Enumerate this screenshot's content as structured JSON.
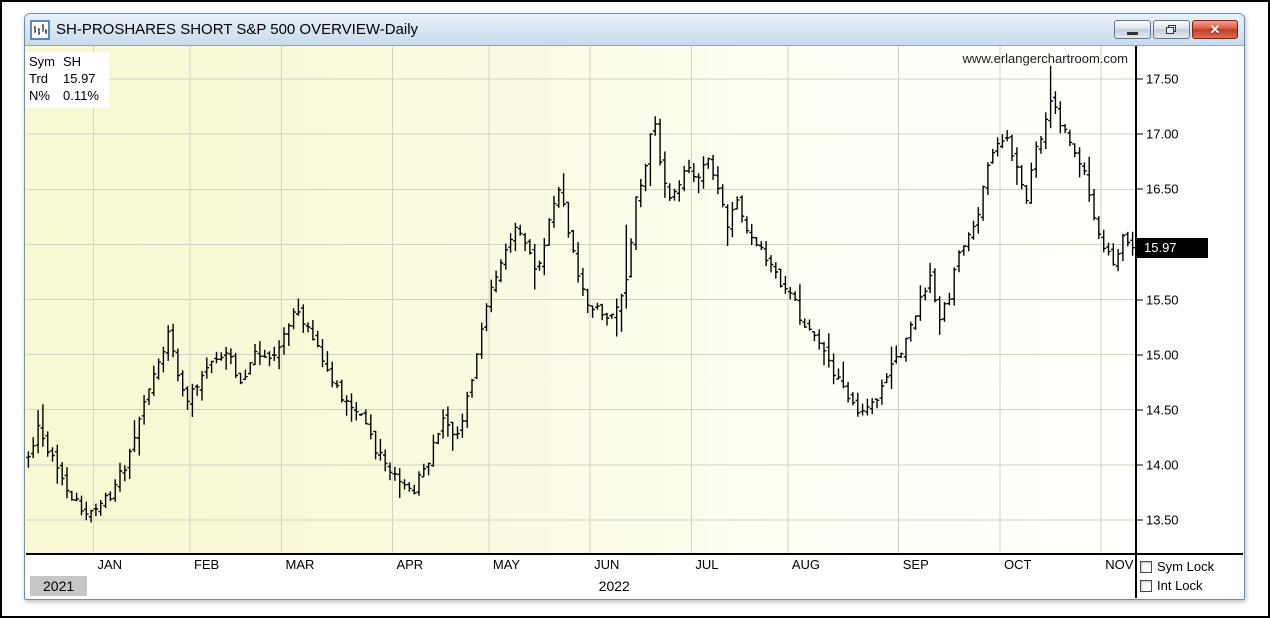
{
  "window": {
    "title": "SH-PROSHARES SHORT S&P 500 OVERVIEW-Daily",
    "controls": {
      "minimize": "minimize",
      "restore": "restore",
      "close": "close"
    }
  },
  "overlay": {
    "rows": [
      {
        "label": "Sym",
        "value": "SH"
      },
      {
        "label": "Trd",
        "value": "15.97"
      },
      {
        "label": "N%",
        "value": "0.11%"
      }
    ]
  },
  "watermark": "www.erlangerchartroom.com",
  "price_tag": "15.97",
  "footer": {
    "year_left": "2021",
    "year_center": "2022",
    "sym_lock": "Sym Lock",
    "int_lock": "Int Lock",
    "sym_lock_checked": false,
    "int_lock_checked": false
  },
  "colors": {
    "grid": "#d2d2c2",
    "bar": "#000000",
    "plot_bg_left": "#f8f8d2",
    "plot_bg_right": "#fffffd",
    "tag_bg": "#000000",
    "tag_fg": "#ffffff",
    "year_box_bg": "#c6c6c6",
    "titlebar_from": "#e9f1f9",
    "titlebar_to": "#c8dbed"
  },
  "chart_data": {
    "type": "bar",
    "subtype": "ohlc-daily",
    "symbol": "SH",
    "timeframe": "Daily",
    "last_price": 15.97,
    "net_change_pct": "0.11%",
    "ylim": [
      13.2,
      17.8
    ],
    "yticks": [
      13.5,
      14.0,
      14.5,
      15.0,
      15.5,
      16.0,
      16.5,
      17.0,
      17.5
    ],
    "grid": true,
    "axis_side": "right",
    "total_days": 230,
    "months": [
      {
        "label": "JAN",
        "start": 14
      },
      {
        "label": "FEB",
        "start": 34
      },
      {
        "label": "MAR",
        "start": 53
      },
      {
        "label": "APR",
        "start": 76
      },
      {
        "label": "MAY",
        "start": 96
      },
      {
        "label": "JUN",
        "start": 117
      },
      {
        "label": "JUL",
        "start": 138
      },
      {
        "label": "AUG",
        "start": 158
      },
      {
        "label": "SEP",
        "start": 181
      },
      {
        "label": "OCT",
        "start": 202
      },
      {
        "label": "NOV",
        "start": 223
      }
    ],
    "close_anchors": [
      [
        0,
        14.1
      ],
      [
        2,
        14.32
      ],
      [
        4,
        14.15
      ],
      [
        6,
        13.95
      ],
      [
        9,
        13.7
      ],
      [
        12,
        13.58
      ],
      [
        15,
        13.62
      ],
      [
        18,
        13.8
      ],
      [
        21,
        14.1
      ],
      [
        24,
        14.55
      ],
      [
        26,
        14.8
      ],
      [
        28,
        15.05
      ],
      [
        29,
        15.2
      ],
      [
        31,
        14.85
      ],
      [
        33,
        14.55
      ],
      [
        35,
        14.75
      ],
      [
        38,
        14.9
      ],
      [
        41,
        15.05
      ],
      [
        44,
        14.7
      ],
      [
        47,
        15.05
      ],
      [
        50,
        14.95
      ],
      [
        53,
        15.15
      ],
      [
        55,
        15.4
      ],
      [
        57,
        15.3
      ],
      [
        60,
        15.05
      ],
      [
        63,
        14.75
      ],
      [
        66,
        14.55
      ],
      [
        69,
        14.45
      ],
      [
        72,
        14.15
      ],
      [
        75,
        13.95
      ],
      [
        78,
        13.82
      ],
      [
        80,
        13.78
      ],
      [
        83,
        14.05
      ],
      [
        86,
        14.4
      ],
      [
        89,
        14.25
      ],
      [
        91,
        14.6
      ],
      [
        93,
        15.0
      ],
      [
        95,
        15.45
      ],
      [
        97,
        15.75
      ],
      [
        99,
        15.95
      ],
      [
        101,
        16.15
      ],
      [
        103,
        16.0
      ],
      [
        105,
        15.75
      ],
      [
        107,
        16.0
      ],
      [
        109,
        16.35
      ],
      [
        110,
        16.5
      ],
      [
        112,
        16.15
      ],
      [
        114,
        15.75
      ],
      [
        116,
        15.4
      ],
      [
        118,
        15.45
      ],
      [
        120,
        15.35
      ],
      [
        122,
        15.45
      ],
      [
        124,
        15.7
      ],
      [
        126,
        16.4
      ],
      [
        128,
        16.75
      ],
      [
        129,
        17.0
      ],
      [
        130,
        17.05
      ],
      [
        131,
        16.75
      ],
      [
        133,
        16.4
      ],
      [
        135,
        16.55
      ],
      [
        137,
        16.7
      ],
      [
        139,
        16.6
      ],
      [
        141,
        16.8
      ],
      [
        143,
        16.5
      ],
      [
        145,
        16.2
      ],
      [
        147,
        16.45
      ],
      [
        149,
        16.15
      ],
      [
        151,
        16.0
      ],
      [
        153,
        15.85
      ],
      [
        155,
        15.7
      ],
      [
        157,
        15.6
      ],
      [
        159,
        15.45
      ],
      [
        161,
        15.25
      ],
      [
        164,
        15.1
      ],
      [
        167,
        14.85
      ],
      [
        170,
        14.6
      ],
      [
        172,
        14.48
      ],
      [
        175,
        14.55
      ],
      [
        178,
        14.8
      ],
      [
        180,
        14.95
      ],
      [
        182,
        15.1
      ],
      [
        185,
        15.5
      ],
      [
        187,
        15.75
      ],
      [
        189,
        15.3
      ],
      [
        191,
        15.55
      ],
      [
        193,
        15.9
      ],
      [
        195,
        16.05
      ],
      [
        197,
        16.3
      ],
      [
        199,
        16.7
      ],
      [
        201,
        16.9
      ],
      [
        203,
        16.95
      ],
      [
        205,
        16.75
      ],
      [
        207,
        16.4
      ],
      [
        209,
        16.85
      ],
      [
        211,
        17.15
      ],
      [
        212,
        17.3
      ],
      [
        213,
        17.2
      ],
      [
        215,
        17.0
      ],
      [
        217,
        16.85
      ],
      [
        219,
        16.65
      ],
      [
        221,
        16.25
      ],
      [
        223,
        16.0
      ],
      [
        225,
        15.85
      ],
      [
        227,
        16.05
      ],
      [
        229,
        15.97
      ]
    ],
    "spikes": [
      {
        "day": 3,
        "high": 14.55
      },
      {
        "day": 12,
        "low": 13.5
      },
      {
        "day": 124,
        "high": 16.18
      },
      {
        "day": 189,
        "low": 15.18
      },
      {
        "day": 212,
        "high": 17.62
      }
    ]
  }
}
